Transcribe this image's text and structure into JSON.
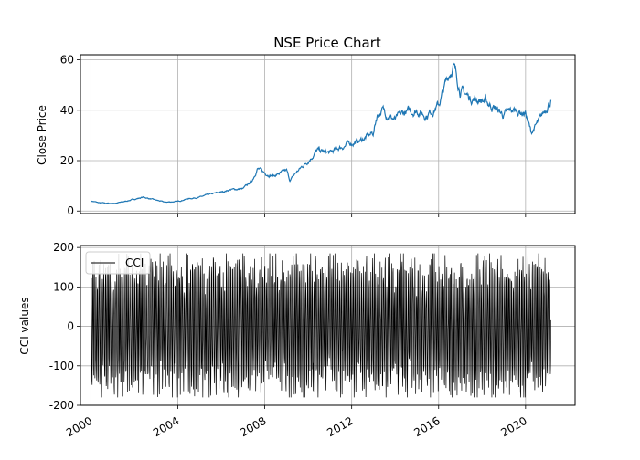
{
  "chart_data": [
    {
      "type": "line",
      "title": "NSE Price Chart",
      "xlabel": "",
      "ylabel": "Close Price",
      "x_type": "date",
      "xlim": [
        "1999-07-10",
        "2022-04-12"
      ],
      "ylim": [
        -1,
        62
      ],
      "yticks": [
        0,
        20,
        40,
        60
      ],
      "xtick_values": [
        "2000-01-01",
        "2004-01-01",
        "2008-01-01",
        "2012-01-01",
        "2016-01-01",
        "2020-01-01"
      ],
      "grid": true,
      "line_color": "#1f77b4",
      "series": [
        {
          "x": [
            "2000-01-01",
            "2000-06-01",
            "2001-01-01",
            "2001-06-01",
            "2002-01-01",
            "2002-06-01",
            "2003-01-01",
            "2003-06-01",
            "2004-01-01",
            "2004-06-01",
            "2005-01-01",
            "2005-06-01",
            "2006-01-01",
            "2006-06-01",
            "2007-01-01",
            "2007-06-01",
            "2007-09-01",
            "2008-01-01",
            "2008-06-01",
            "2009-01-01",
            "2009-03-01",
            "2009-06-01",
            "2010-01-01",
            "2010-06-01",
            "2011-01-01",
            "2011-06-01",
            "2012-01-01",
            "2012-06-01",
            "2013-01-01",
            "2013-03-01",
            "2013-06-01",
            "2014-01-01",
            "2014-06-01",
            "2015-01-01",
            "2015-06-01",
            "2016-01-01",
            "2016-03-01",
            "2016-06-01",
            "2016-09-01",
            "2017-01-01",
            "2017-06-01",
            "2018-01-01",
            "2018-06-01",
            "2019-01-01",
            "2019-06-01",
            "2020-01-01",
            "2020-04-01",
            "2020-09-01",
            "2021-01-01",
            "2021-03-01"
          ],
          "y": [
            4,
            3.2,
            3,
            3.5,
            4.7,
            5.5,
            4.3,
            3.5,
            3.8,
            4.8,
            5.5,
            6.5,
            7.5,
            8.5,
            8.8,
            12,
            17,
            15,
            14,
            16,
            12,
            15,
            20,
            24,
            23,
            25,
            27,
            28,
            31,
            38,
            40,
            36,
            39,
            40,
            38,
            42,
            46,
            53,
            58,
            48,
            45,
            44,
            42,
            38,
            40,
            39,
            31,
            36,
            42,
            44
          ]
        }
      ]
    },
    {
      "type": "line",
      "title": "",
      "xlabel": "",
      "ylabel": "CCI values",
      "x_type": "date",
      "xlim": [
        "1999-07-10",
        "2022-04-12"
      ],
      "ylim": [
        -200,
        205
      ],
      "yticks": [
        -200,
        -100,
        0,
        100,
        200
      ],
      "xtick_values": [
        "2000-01-01",
        "2004-01-01",
        "2008-01-01",
        "2012-01-01",
        "2016-01-01",
        "2020-01-01"
      ],
      "xtick_labels": [
        "2000",
        "2004",
        "2008",
        "2012",
        "2016",
        "2020"
      ],
      "grid": true,
      "line_color": "#000000",
      "legend": {
        "position": "top-left",
        "entries": [
          "CCI"
        ]
      },
      "series": [
        {
          "name": "CCI",
          "x_start": "2000-01-01",
          "x_end": "2021-03-01",
          "value_range": [
            -180,
            185
          ],
          "points_drawn": 1800
        }
      ]
    }
  ]
}
